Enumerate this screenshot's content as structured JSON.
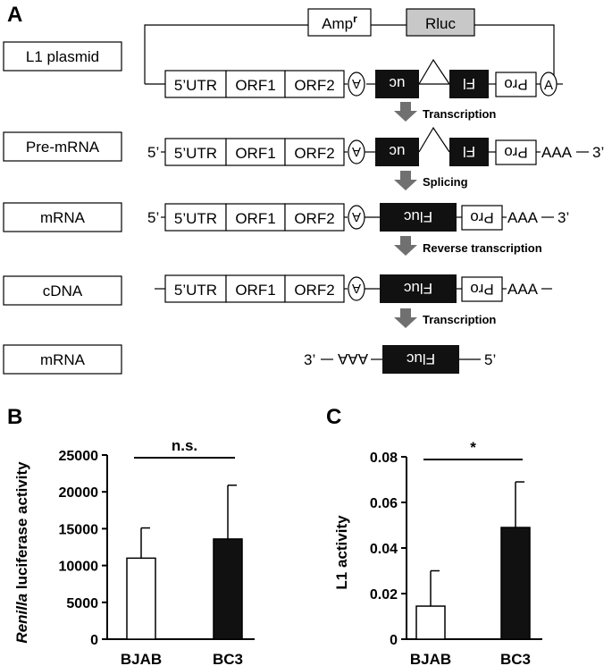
{
  "panels": {
    "a": "A",
    "b": "B",
    "c": "C"
  },
  "rows": [
    {
      "label": "L1 plasmid"
    },
    {
      "label": "Pre-mRNA"
    },
    {
      "label": "mRNA"
    },
    {
      "label": "cDNA"
    },
    {
      "label": "mRNA"
    }
  ],
  "segments": {
    "utr": "5’UTR",
    "orf1": "ORF1",
    "orf2": "ORF2",
    "pa": "A",
    "uc": "uc",
    "fl": "Fl",
    "fluc": "Fluc",
    "pro": "Pro",
    "aaa": "AAA"
  },
  "plasmid": {
    "amp_base": "Amp",
    "amp_sup": "r",
    "rluc": "Rluc"
  },
  "ends": {
    "five": "5’",
    "three": "3’",
    "dash": "—"
  },
  "steps": [
    "Transcription",
    "Splicing",
    "Reverse transcription",
    "Transcription"
  ],
  "colors": {
    "black_box": "#111111",
    "rluc_fill": "#c8c8c8",
    "arrow": "#707070"
  },
  "chart_data": [
    {
      "type": "bar",
      "panel": "B",
      "categories": [
        "BJAB",
        "BC3"
      ],
      "values": [
        11000,
        13600
      ],
      "errors": [
        4100,
        7300
      ],
      "ylabel_italic": "Renilla",
      "ylabel_rest": " luciferase activity",
      "ylim": [
        0,
        25000
      ],
      "yticks": [
        0,
        5000,
        10000,
        15000,
        20000,
        25000
      ],
      "significance": "n.s.",
      "bar_colors": [
        "#ffffff",
        "#111111"
      ]
    },
    {
      "type": "bar",
      "panel": "C",
      "categories": [
        "BJAB",
        "BC3"
      ],
      "values": [
        0.0145,
        0.049
      ],
      "errors": [
        0.0155,
        0.02
      ],
      "ylabel": "L1 activity",
      "ylim": [
        0,
        0.08
      ],
      "yticks": [
        0,
        0.02,
        0.04,
        0.06,
        0.08
      ],
      "significance": "*",
      "bar_colors": [
        "#ffffff",
        "#111111"
      ]
    }
  ]
}
